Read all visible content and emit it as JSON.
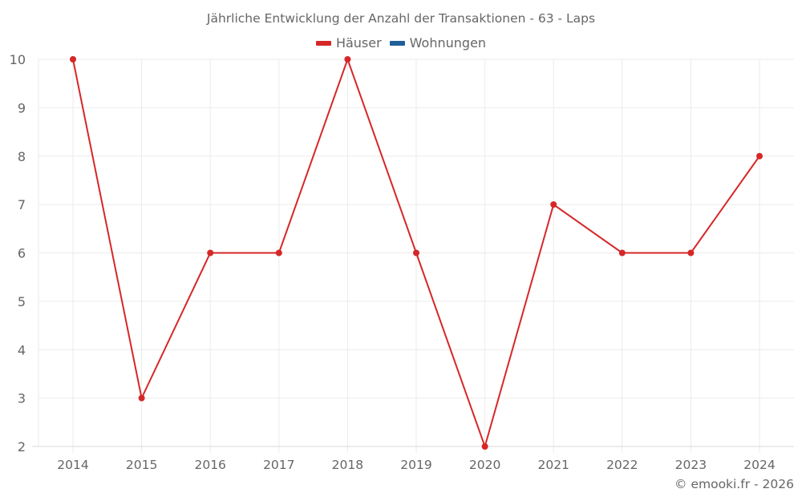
{
  "chart_data": {
    "type": "line",
    "title": "Jährliche Entwicklung der Anzahl der Transaktionen - 63 - Laps",
    "xlabel": "",
    "ylabel": "",
    "categories": [
      "2014",
      "2015",
      "2016",
      "2017",
      "2018",
      "2019",
      "2020",
      "2021",
      "2022",
      "2023",
      "2024"
    ],
    "series": [
      {
        "name": "Häuser",
        "color": "#d62728",
        "values": [
          10,
          3,
          6,
          6,
          10,
          6,
          2,
          7,
          6,
          6,
          8
        ]
      },
      {
        "name": "Wohnungen",
        "color": "#1f5f99",
        "values": []
      }
    ],
    "ylim": [
      2,
      10
    ],
    "yticks": [
      2,
      3,
      4,
      5,
      6,
      7,
      8,
      9,
      10
    ],
    "grid": true,
    "legend_position": "top-center"
  },
  "legend": [
    {
      "label": "Häuser",
      "color": "#d62728"
    },
    {
      "label": "Wohnungen",
      "color": "#1f5f99"
    }
  ],
  "credit": "© emooki.fr - 2026"
}
